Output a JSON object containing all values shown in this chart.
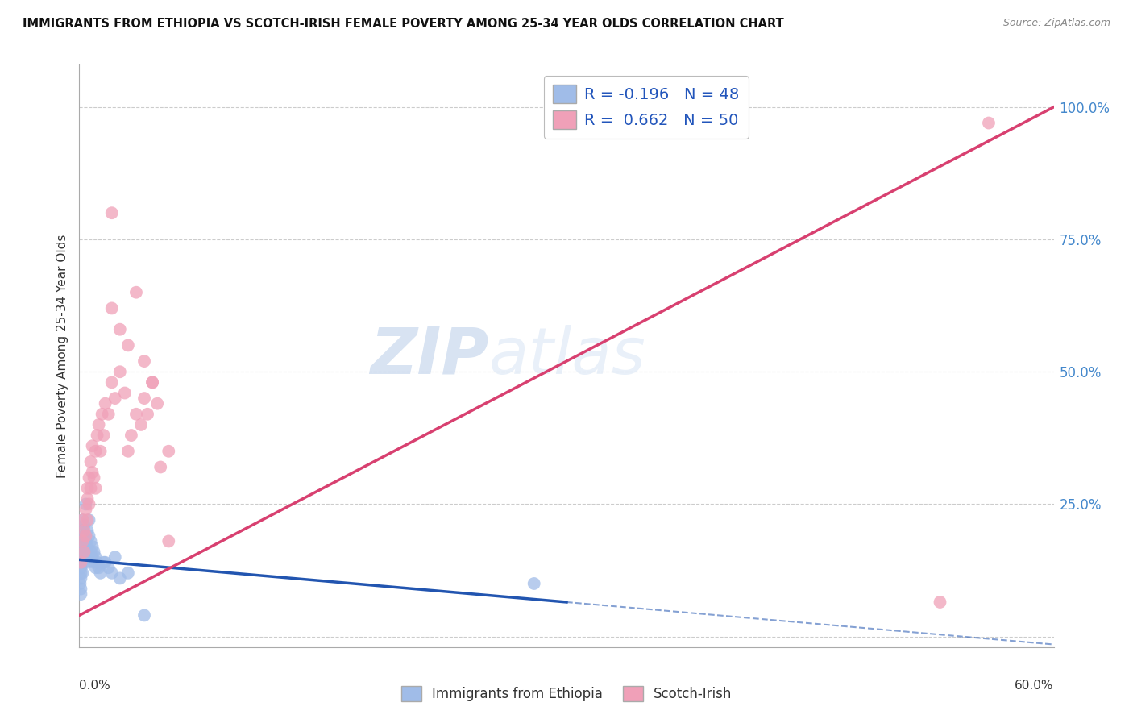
{
  "title": "IMMIGRANTS FROM ETHIOPIA VS SCOTCH-IRISH FEMALE POVERTY AMONG 25-34 YEAR OLDS CORRELATION CHART",
  "source": "Source: ZipAtlas.com",
  "ylabel": "Female Poverty Among 25-34 Year Olds",
  "xmin": 0.0,
  "xmax": 0.6,
  "ymin": -0.02,
  "ymax": 1.08,
  "blue_R": -0.196,
  "blue_N": 48,
  "pink_R": 0.662,
  "pink_N": 50,
  "blue_color": "#a0bce8",
  "pink_color": "#f0a0b8",
  "blue_line_color": "#2255b0",
  "pink_line_color": "#d84070",
  "watermark_zip": "ZIP",
  "watermark_atlas": "atlas",
  "legend_label_blue": "Immigrants from Ethiopia",
  "legend_label_pink": "Scotch-Irish",
  "blue_line_x0": 0.0,
  "blue_line_y0": 0.145,
  "blue_line_x1_solid": 0.3,
  "blue_line_y1_solid": 0.065,
  "blue_line_x2_dashed": 0.6,
  "blue_line_y2_dashed": -0.015,
  "pink_line_x0": 0.0,
  "pink_line_y0": 0.04,
  "pink_line_x1": 0.6,
  "pink_line_y1": 1.0,
  "blue_x": [
    0.0005,
    0.001,
    0.001,
    0.001,
    0.001,
    0.001,
    0.001,
    0.001,
    0.001,
    0.0015,
    0.002,
    0.002,
    0.002,
    0.002,
    0.002,
    0.002,
    0.003,
    0.003,
    0.003,
    0.003,
    0.004,
    0.004,
    0.004,
    0.005,
    0.005,
    0.005,
    0.006,
    0.006,
    0.007,
    0.007,
    0.008,
    0.008,
    0.009,
    0.009,
    0.01,
    0.01,
    0.011,
    0.012,
    0.013,
    0.015,
    0.016,
    0.018,
    0.02,
    0.022,
    0.025,
    0.03,
    0.04,
    0.28
  ],
  "blue_y": [
    0.1,
    0.14,
    0.16,
    0.12,
    0.09,
    0.11,
    0.13,
    0.15,
    0.08,
    0.14,
    0.18,
    0.2,
    0.15,
    0.12,
    0.17,
    0.22,
    0.19,
    0.16,
    0.14,
    0.21,
    0.25,
    0.18,
    0.15,
    0.2,
    0.17,
    0.14,
    0.19,
    0.22,
    0.16,
    0.18,
    0.15,
    0.17,
    0.14,
    0.16,
    0.13,
    0.15,
    0.14,
    0.13,
    0.12,
    0.14,
    0.14,
    0.13,
    0.12,
    0.15,
    0.11,
    0.12,
    0.04,
    0.1
  ],
  "pink_x": [
    0.001,
    0.002,
    0.002,
    0.003,
    0.003,
    0.004,
    0.004,
    0.005,
    0.005,
    0.005,
    0.006,
    0.006,
    0.007,
    0.007,
    0.008,
    0.008,
    0.009,
    0.01,
    0.01,
    0.011,
    0.012,
    0.013,
    0.014,
    0.015,
    0.016,
    0.018,
    0.02,
    0.022,
    0.025,
    0.028,
    0.03,
    0.032,
    0.035,
    0.038,
    0.04,
    0.042,
    0.045,
    0.048,
    0.05,
    0.055,
    0.02,
    0.025,
    0.03,
    0.035,
    0.04,
    0.045,
    0.055,
    0.02,
    0.53,
    0.56
  ],
  "pink_y": [
    0.14,
    0.18,
    0.22,
    0.16,
    0.2,
    0.24,
    0.19,
    0.28,
    0.22,
    0.26,
    0.3,
    0.25,
    0.33,
    0.28,
    0.36,
    0.31,
    0.3,
    0.35,
    0.28,
    0.38,
    0.4,
    0.35,
    0.42,
    0.38,
    0.44,
    0.42,
    0.48,
    0.45,
    0.5,
    0.46,
    0.35,
    0.38,
    0.42,
    0.4,
    0.45,
    0.42,
    0.48,
    0.44,
    0.32,
    0.35,
    0.62,
    0.58,
    0.55,
    0.65,
    0.52,
    0.48,
    0.18,
    0.8,
    0.065,
    0.97
  ]
}
